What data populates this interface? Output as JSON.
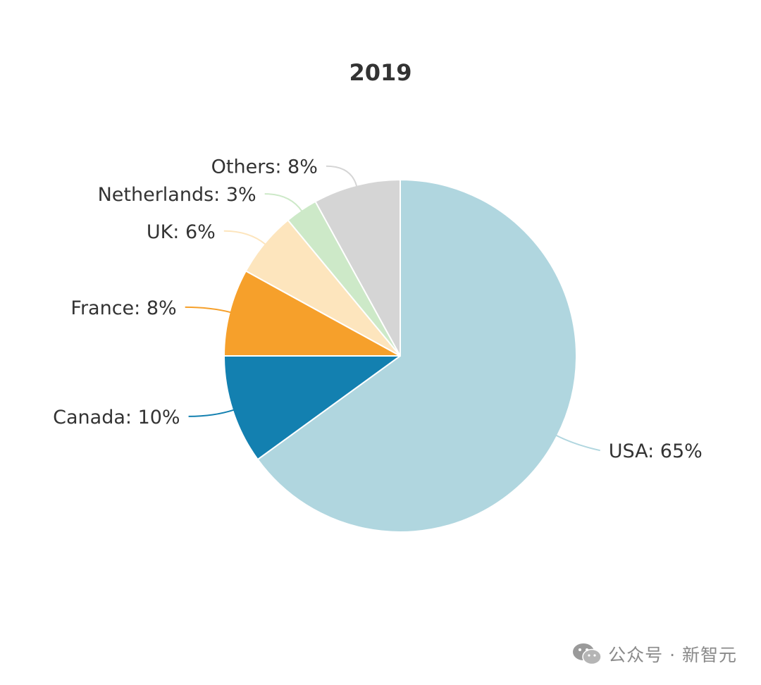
{
  "chart_data": {
    "type": "pie",
    "title": "2019",
    "slices": [
      {
        "label": "USA",
        "value": 65,
        "display": "USA: 65%",
        "color": "#b0d6df"
      },
      {
        "label": "Canada",
        "value": 10,
        "display": "Canada: 10%",
        "color": "#1380b0"
      },
      {
        "label": "France",
        "value": 8,
        "display": "France: 8%",
        "color": "#f6a02b"
      },
      {
        "label": "UK",
        "value": 6,
        "display": "UK: 6%",
        "color": "#fde5bd"
      },
      {
        "label": "Netherlands",
        "value": 3,
        "display": "Netherlands: 3%",
        "color": "#cde9c8"
      },
      {
        "label": "Others",
        "value": 8,
        "display": "Others: 8%",
        "color": "#d5d5d5"
      }
    ],
    "start_angle": "top",
    "direction": "clockwise",
    "labels_outside": true
  },
  "watermark": {
    "text": "公众号 · 新智元",
    "icon": "wechat-icon"
  }
}
